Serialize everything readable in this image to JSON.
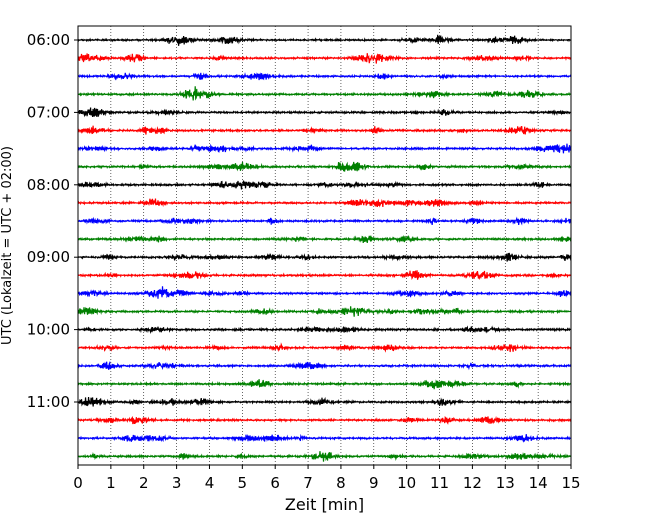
{
  "chart_data": {
    "type": "line",
    "title": "",
    "xlabel": "Zeit  [min]",
    "ylabel": "UTC (Lokalzeit = UTC + 02:00)",
    "xlim": [
      0,
      15
    ],
    "x_ticks": [
      "0",
      "1",
      "2",
      "3",
      "4",
      "5",
      "6",
      "7",
      "8",
      "9",
      "10",
      "11",
      "12",
      "13",
      "14",
      "15"
    ],
    "y_ticks": [
      "06:00",
      "07:00",
      "08:00",
      "09:00",
      "10:00",
      "11:00"
    ],
    "grid": "vertical dotted",
    "legend": "none",
    "trace_interval_minutes": 15,
    "trace_colors": [
      "#000000",
      "#ff0000",
      "#0000ff",
      "#008000"
    ],
    "traces": [
      {
        "start": "06:00",
        "color": "#000000"
      },
      {
        "start": "06:15",
        "color": "#ff0000"
      },
      {
        "start": "06:30",
        "color": "#0000ff"
      },
      {
        "start": "06:45",
        "color": "#008000"
      },
      {
        "start": "07:00",
        "color": "#000000"
      },
      {
        "start": "07:15",
        "color": "#ff0000"
      },
      {
        "start": "07:30",
        "color": "#0000ff"
      },
      {
        "start": "07:45",
        "color": "#008000"
      },
      {
        "start": "08:00",
        "color": "#000000"
      },
      {
        "start": "08:15",
        "color": "#ff0000"
      },
      {
        "start": "08:30",
        "color": "#0000ff"
      },
      {
        "start": "08:45",
        "color": "#008000"
      },
      {
        "start": "09:00",
        "color": "#000000"
      },
      {
        "start": "09:15",
        "color": "#ff0000"
      },
      {
        "start": "09:30",
        "color": "#0000ff"
      },
      {
        "start": "09:45",
        "color": "#008000"
      },
      {
        "start": "10:00",
        "color": "#000000"
      },
      {
        "start": "10:15",
        "color": "#ff0000"
      },
      {
        "start": "10:30",
        "color": "#0000ff"
      },
      {
        "start": "10:45",
        "color": "#008000"
      },
      {
        "start": "11:00",
        "color": "#000000"
      },
      {
        "start": "11:15",
        "color": "#ff0000"
      },
      {
        "start": "11:30",
        "color": "#0000ff"
      },
      {
        "start": "11:45",
        "color": "#008000"
      }
    ]
  }
}
